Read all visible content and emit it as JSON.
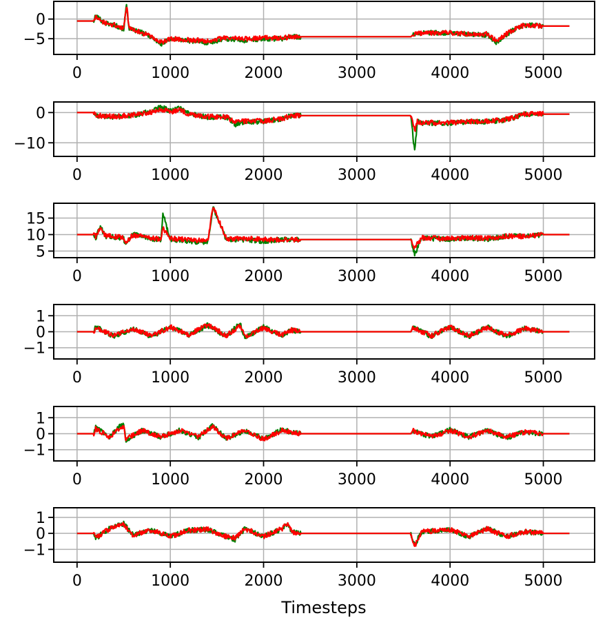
{
  "chart_data": {
    "type": "line",
    "xlabel": "Timesteps",
    "xlim": [
      -250,
      5550
    ],
    "x_ticks": [
      0,
      1000,
      2000,
      3000,
      4000,
      5000
    ],
    "x_tick_labels": [
      "0",
      "1000",
      "2000",
      "3000",
      "4000",
      "5000"
    ],
    "grid": true,
    "colors": {
      "series_a": "#008000",
      "series_b": "#ff0000"
    },
    "panels": [
      {
        "ylim": [
          -9,
          4.5
        ],
        "y_ticks": [
          0,
          -5
        ],
        "y_tick_labels": [
          "0",
          "−5"
        ],
        "series": [
          {
            "color": "#008000",
            "x": [
              0,
              180,
              200,
              300,
              400,
              500,
              530,
              560,
              700,
              800,
              900,
              1000,
              1200,
              1400,
              1600,
              1800,
              2000,
              2200,
              2300,
              2400,
              3000,
              3580,
              3600,
              3700,
              4000,
              4200,
              4400,
              4500,
              4600,
              4700,
              4800,
              5000,
              5280
            ],
            "y": [
              -0.5,
              -0.5,
              0.8,
              -1.0,
              -1.5,
              -2.5,
              3.5,
              -2.5,
              -3.5,
              -4.5,
              -6.5,
              -5.0,
              -5.5,
              -6.0,
              -5.0,
              -5.5,
              -5.0,
              -5.0,
              -4.5,
              -4.5,
              -4.5,
              -4.5,
              -4.0,
              -3.5,
              -3.5,
              -4.0,
              -4.0,
              -6.0,
              -4.0,
              -2.5,
              -1.5,
              -1.8,
              -1.8
            ]
          },
          {
            "color": "#ff0000",
            "x": [
              0,
              180,
              200,
              300,
              400,
              500,
              530,
              560,
              700,
              800,
              900,
              1000,
              1200,
              1400,
              1600,
              1800,
              2000,
              2200,
              2300,
              2400,
              3000,
              3580,
              3600,
              3700,
              4000,
              4200,
              4400,
              4500,
              4600,
              4700,
              4800,
              5000,
              5280
            ],
            "y": [
              -0.5,
              -0.5,
              0.5,
              -1.0,
              -1.5,
              -2.5,
              3.5,
              -2.5,
              -3.5,
              -4.5,
              -6.0,
              -5.0,
              -5.3,
              -5.5,
              -4.8,
              -5.0,
              -4.8,
              -4.8,
              -4.5,
              -4.5,
              -4.5,
              -4.5,
              -4.0,
              -3.5,
              -3.5,
              -3.8,
              -3.8,
              -5.5,
              -3.8,
              -2.5,
              -1.5,
              -1.8,
              -1.8
            ]
          }
        ]
      },
      {
        "ylim": [
          -14.5,
          3.5
        ],
        "y_ticks": [
          0,
          -10
        ],
        "y_tick_labels": [
          "0",
          "−10"
        ],
        "series": [
          {
            "color": "#008000",
            "x": [
              0,
              180,
              200,
              400,
              600,
              800,
              900,
              1000,
              1100,
              1200,
              1400,
              1600,
              1700,
              1800,
              2000,
              2200,
              2300,
              2400,
              3000,
              3580,
              3620,
              3650,
              3700,
              4000,
              4200,
              4400,
              4600,
              4700,
              4800,
              5000,
              5280
            ],
            "y": [
              0,
              0,
              -1.0,
              -1.5,
              -1.0,
              0.5,
              2.0,
              0.5,
              1.5,
              -0.5,
              -1.5,
              -1.5,
              -4.0,
              -3.0,
              -3.0,
              -2.0,
              -1.0,
              -1.0,
              -1.0,
              -1.0,
              -13.0,
              -3.0,
              -3.5,
              -3.5,
              -3.0,
              -3.0,
              -2.5,
              -1.5,
              -0.5,
              -0.5,
              -0.5
            ]
          },
          {
            "color": "#ff0000",
            "x": [
              0,
              180,
              200,
              400,
              600,
              800,
              900,
              1000,
              1100,
              1200,
              1400,
              1600,
              1700,
              1800,
              2000,
              2200,
              2300,
              2400,
              3000,
              3580,
              3620,
              3650,
              3700,
              4000,
              4200,
              4400,
              4600,
              4700,
              4800,
              5000,
              5280
            ],
            "y": [
              0,
              0,
              -1.0,
              -1.3,
              -0.8,
              0.2,
              1.0,
              0.2,
              1.0,
              -0.5,
              -1.3,
              -1.5,
              -3.0,
              -2.8,
              -2.8,
              -2.0,
              -1.0,
              -1.0,
              -1.0,
              -1.0,
              -6.0,
              -3.0,
              -3.3,
              -3.3,
              -3.0,
              -2.8,
              -2.3,
              -1.5,
              -0.5,
              -0.5,
              -0.5
            ]
          }
        ]
      },
      {
        "ylim": [
          3,
          19.5
        ],
        "y_ticks": [
          15,
          10,
          5
        ],
        "y_tick_labels": [
          "15",
          "10",
          "5"
        ],
        "series": [
          {
            "color": "#008000",
            "x": [
              0,
              180,
              200,
              250,
              300,
              500,
              510,
              600,
              700,
              800,
              900,
              920,
              1000,
              1200,
              1400,
              1460,
              1600,
              1800,
              2000,
              2200,
              2300,
              2400,
              3000,
              3580,
              3620,
              3700,
              4000,
              4200,
              4400,
              4600,
              4800,
              5000,
              5280
            ],
            "y": [
              10,
              10,
              9.0,
              12.5,
              9.5,
              9.0,
              7.0,
              10.0,
              9.5,
              8.5,
              8.5,
              16.5,
              8.5,
              8.0,
              7.5,
              18.0,
              8.5,
              8.5,
              8.0,
              8.5,
              8.5,
              8.5,
              8.5,
              8.5,
              4.0,
              9.0,
              8.5,
              9.0,
              8.5,
              9.5,
              9.5,
              10.0,
              10.0
            ]
          },
          {
            "color": "#ff0000",
            "x": [
              0,
              180,
              200,
              250,
              300,
              500,
              510,
              600,
              700,
              800,
              900,
              920,
              1000,
              1200,
              1400,
              1460,
              1600,
              1800,
              2000,
              2200,
              2300,
              2400,
              3000,
              3580,
              3620,
              3700,
              4000,
              4200,
              4400,
              4600,
              4800,
              5000,
              5280
            ],
            "y": [
              10,
              10,
              9.5,
              12.0,
              9.8,
              9.0,
              7.5,
              9.8,
              9.5,
              8.8,
              8.8,
              12.0,
              8.8,
              8.5,
              8.0,
              18.5,
              8.8,
              8.8,
              8.5,
              8.5,
              8.5,
              8.5,
              8.5,
              8.5,
              6.0,
              9.0,
              8.8,
              9.0,
              8.8,
              9.5,
              9.5,
              10.0,
              10.0
            ]
          }
        ]
      },
      {
        "ylim": [
          -1.7,
          1.7
        ],
        "y_ticks": [
          1,
          0,
          -1
        ],
        "y_tick_labels": [
          "1",
          "0",
          "−1"
        ],
        "series": [
          {
            "color": "#008000",
            "x": [
              0,
              180,
              200,
              400,
              600,
              800,
              1000,
              1200,
              1400,
              1600,
              1750,
              1800,
              2000,
              2200,
              2300,
              2400,
              3000,
              3580,
              3600,
              3800,
              4000,
              4200,
              4400,
              4600,
              4800,
              5000,
              5280
            ],
            "y": [
              0,
              0,
              0.3,
              -0.3,
              0.2,
              -0.3,
              0.3,
              -0.2,
              0.4,
              -0.3,
              0.55,
              -0.4,
              0.3,
              -0.2,
              0.1,
              0,
              0,
              0,
              0.3,
              -0.3,
              0.3,
              -0.3,
              0.3,
              -0.3,
              0.2,
              0,
              0
            ]
          },
          {
            "color": "#ff0000",
            "x": [
              0,
              180,
              200,
              400,
              600,
              800,
              1000,
              1200,
              1400,
              1600,
              1750,
              1800,
              2000,
              2200,
              2300,
              2400,
              3000,
              3580,
              3600,
              3800,
              4000,
              4200,
              4400,
              4600,
              4800,
              5000,
              5280
            ],
            "y": [
              0,
              0,
              0.25,
              -0.25,
              0.2,
              -0.25,
              0.3,
              -0.2,
              0.45,
              -0.25,
              0.4,
              -0.3,
              0.25,
              -0.2,
              0.1,
              0,
              0,
              0,
              0.25,
              -0.25,
              0.3,
              -0.25,
              0.25,
              -0.25,
              0.2,
              0,
              0
            ]
          }
        ]
      },
      {
        "ylim": [
          -1.7,
          1.7
        ],
        "y_ticks": [
          1,
          0,
          -1
        ],
        "y_tick_labels": [
          "1",
          "0",
          "−1"
        ],
        "series": [
          {
            "color": "#008000",
            "x": [
              0,
              180,
              200,
              350,
              500,
              520,
              700,
              900,
              1100,
              1300,
              1450,
              1600,
              1800,
              2000,
              2200,
              2300,
              2400,
              3000,
              3580,
              3600,
              3800,
              4000,
              4200,
              4400,
              4600,
              4800,
              5000,
              5280
            ],
            "y": [
              0,
              0,
              0.4,
              -0.2,
              0.7,
              -0.4,
              0.2,
              -0.2,
              0.2,
              -0.25,
              0.5,
              -0.3,
              0.2,
              -0.3,
              0.25,
              0.1,
              0,
              0,
              0,
              0.2,
              -0.2,
              0.25,
              -0.2,
              0.2,
              -0.25,
              0.1,
              0,
              0
            ]
          },
          {
            "color": "#ff0000",
            "x": [
              0,
              180,
              200,
              350,
              500,
              520,
              700,
              900,
              1100,
              1300,
              1450,
              1600,
              1800,
              2000,
              2200,
              2300,
              2400,
              3000,
              3580,
              3600,
              3800,
              4000,
              4200,
              4400,
              4600,
              4800,
              5000,
              5280
            ],
            "y": [
              0,
              0,
              0.3,
              -0.2,
              0.5,
              -0.35,
              0.2,
              -0.2,
              0.2,
              -0.2,
              0.45,
              -0.3,
              0.2,
              -0.35,
              0.2,
              0.1,
              0,
              0,
              0,
              0.2,
              -0.2,
              0.2,
              -0.2,
              0.2,
              -0.2,
              0.1,
              0,
              0
            ]
          }
        ]
      },
      {
        "ylim": [
          -1.8,
          1.6
        ],
        "y_ticks": [
          1,
          0,
          -1
        ],
        "y_tick_labels": [
          "1",
          "0",
          "−1"
        ],
        "series": [
          {
            "color": "#008000",
            "x": [
              0,
              180,
              200,
              350,
              500,
              600,
              800,
              1000,
              1200,
              1400,
              1600,
              1700,
              1800,
              2000,
              2200,
              2260,
              2300,
              2400,
              3000,
              3580,
              3620,
              3700,
              4000,
              4200,
              4400,
              4600,
              4800,
              5000,
              5280
            ],
            "y": [
              0,
              0,
              -0.3,
              0.3,
              0.6,
              -0.1,
              0.2,
              -0.2,
              0.2,
              0.25,
              -0.2,
              -0.4,
              0.3,
              -0.2,
              0.3,
              0.6,
              0.1,
              0,
              0,
              0,
              -0.7,
              0.1,
              0.25,
              -0.2,
              0.3,
              -0.2,
              0.1,
              0,
              0
            ]
          },
          {
            "color": "#ff0000",
            "x": [
              0,
              180,
              200,
              350,
              500,
              600,
              800,
              1000,
              1200,
              1400,
              1600,
              1700,
              1800,
              2000,
              2200,
              2260,
              2300,
              2400,
              3000,
              3580,
              3620,
              3700,
              4000,
              4200,
              4400,
              4600,
              4800,
              5000,
              5280
            ],
            "y": [
              0,
              0,
              -0.3,
              0.3,
              0.55,
              -0.1,
              0.2,
              -0.2,
              0.2,
              0.25,
              -0.2,
              -0.3,
              0.3,
              -0.2,
              0.3,
              0.7,
              0.1,
              0,
              0,
              0,
              -0.8,
              0.1,
              0.25,
              -0.2,
              0.3,
              -0.2,
              0.1,
              0,
              0
            ]
          }
        ]
      }
    ]
  }
}
